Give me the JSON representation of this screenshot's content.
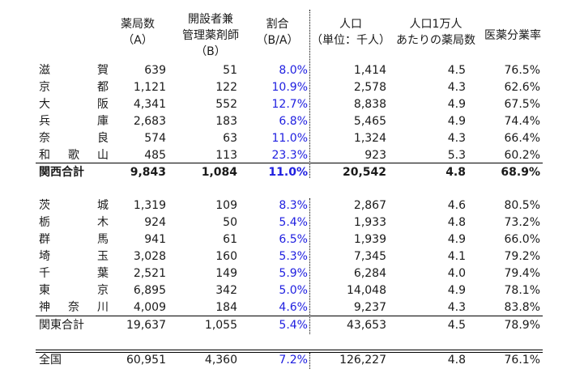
{
  "headers": {
    "pharmacies": [
      "薬局数",
      "（A）"
    ],
    "owner_pharmacists": [
      "開設者兼",
      "管理薬剤師",
      "（B）"
    ],
    "ratio": [
      "割合",
      "（B/A）"
    ],
    "population": [
      "人口",
      "（単位：千人）"
    ],
    "per_10k": [
      "人口1万人",
      "あたりの薬局数"
    ],
    "separation_rate": "医薬分業率"
  },
  "kansai": {
    "rows": [
      {
        "name": [
          "滋",
          "賀"
        ],
        "a": "639",
        "b": "51",
        "ratio": "8.0%",
        "pop": "1,414",
        "per": "4.5",
        "sep": "76.5%"
      },
      {
        "name": [
          "京",
          "都"
        ],
        "a": "1,121",
        "b": "122",
        "ratio": "10.9%",
        "pop": "2,578",
        "per": "4.3",
        "sep": "62.6%"
      },
      {
        "name": [
          "大",
          "阪"
        ],
        "a": "4,341",
        "b": "552",
        "ratio": "12.7%",
        "pop": "8,838",
        "per": "4.9",
        "sep": "67.5%"
      },
      {
        "name": [
          "兵",
          "庫"
        ],
        "a": "2,683",
        "b": "183",
        "ratio": "6.8%",
        "pop": "5,465",
        "per": "4.9",
        "sep": "74.4%"
      },
      {
        "name": [
          "奈",
          "良"
        ],
        "a": "574",
        "b": "63",
        "ratio": "11.0%",
        "pop": "1,324",
        "per": "4.3",
        "sep": "66.4%"
      },
      {
        "name": [
          "和",
          "歌",
          "山"
        ],
        "a": "485",
        "b": "113",
        "ratio": "23.3%",
        "pop": "923",
        "per": "5.3",
        "sep": "60.2%"
      }
    ],
    "total": {
      "name": "関西合計",
      "a": "9,843",
      "b": "1,084",
      "ratio": "11.0%",
      "pop": "20,542",
      "per": "4.8",
      "sep": "68.9%"
    }
  },
  "kanto": {
    "rows": [
      {
        "name": [
          "茨",
          "城"
        ],
        "a": "1,319",
        "b": "109",
        "ratio": "8.3%",
        "pop": "2,867",
        "per": "4.6",
        "sep": "80.5%"
      },
      {
        "name": [
          "栃",
          "木"
        ],
        "a": "924",
        "b": "50",
        "ratio": "5.4%",
        "pop": "1,933",
        "per": "4.8",
        "sep": "73.2%"
      },
      {
        "name": [
          "群",
          "馬"
        ],
        "a": "941",
        "b": "61",
        "ratio": "6.5%",
        "pop": "1,939",
        "per": "4.9",
        "sep": "66.0%"
      },
      {
        "name": [
          "埼",
          "玉"
        ],
        "a": "3,028",
        "b": "160",
        "ratio": "5.3%",
        "pop": "7,345",
        "per": "4.1",
        "sep": "79.2%"
      },
      {
        "name": [
          "千",
          "葉"
        ],
        "a": "2,521",
        "b": "149",
        "ratio": "5.9%",
        "pop": "6,284",
        "per": "4.0",
        "sep": "79.4%"
      },
      {
        "name": [
          "東",
          "京"
        ],
        "a": "6,895",
        "b": "342",
        "ratio": "5.0%",
        "pop": "14,048",
        "per": "4.9",
        "sep": "78.1%"
      },
      {
        "name": [
          "神",
          "奈",
          "川"
        ],
        "a": "4,009",
        "b": "184",
        "ratio": "4.6%",
        "pop": "9,237",
        "per": "4.3",
        "sep": "83.8%"
      }
    ],
    "total": {
      "name": "関東合計",
      "a": "19,637",
      "b": "1,055",
      "ratio": "5.4%",
      "pop": "43,653",
      "per": "4.5",
      "sep": "78.9%"
    }
  },
  "national": {
    "name": "全国",
    "a": "60,951",
    "b": "4,360",
    "ratio": "7.2%",
    "pop": "126,227",
    "per": "4.8",
    "sep": "76.1%"
  },
  "colors": {
    "ratio_text": "#2020e0",
    "text": "#1a1a1a",
    "rule": "#000000"
  }
}
